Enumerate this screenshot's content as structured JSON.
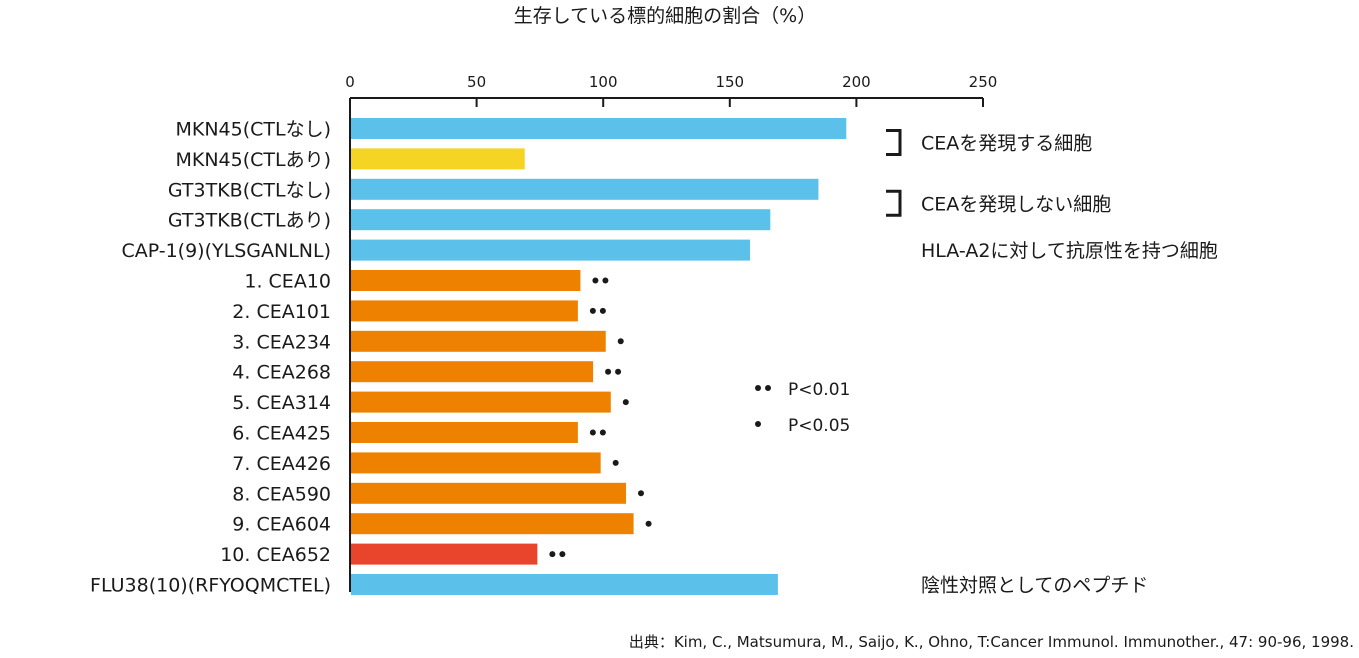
{
  "chart_data": {
    "type": "bar",
    "orientation": "horizontal",
    "title": "生存している標的細胞の割合（%）",
    "xlim": [
      0,
      250
    ],
    "x_ticks": [
      0,
      50,
      100,
      150,
      200,
      250
    ],
    "categories": [
      "MKN45(CTLなし)",
      "MKN45(CTLあり)",
      "GT3TKB(CTLなし)",
      "GT3TKB(CTLあり)",
      "CAP-1(9)(YLSGANLNL)",
      "1. CEA10",
      "2. CEA101",
      "3. CEA234",
      "4. CEA268",
      "5. CEA314",
      "6. CEA425",
      "7. CEA426",
      "8. CEA590",
      "9. CEA604",
      "10. CEA652",
      "FLU38(10)(RFYOQMCTEL)"
    ],
    "values": [
      196,
      69,
      185,
      166,
      158,
      91,
      90,
      101,
      96,
      103,
      90,
      99,
      109,
      112,
      74,
      169
    ],
    "bar_colors": [
      "#5bc0ea",
      "#f5d423",
      "#5bc0ea",
      "#5bc0ea",
      "#5bc0ea",
      "#ee8200",
      "#ee8200",
      "#ee8200",
      "#ee8200",
      "#ee8200",
      "#ee8200",
      "#ee8200",
      "#ee8200",
      "#ee8200",
      "#e8452c",
      "#5bc0ea"
    ],
    "significance": [
      "",
      "",
      "",
      "",
      "",
      "••",
      "••",
      "•",
      "••",
      "•",
      "••",
      "•",
      "•",
      "•",
      "••",
      ""
    ],
    "group_labels": [
      {
        "text": "CEAを発現する細胞",
        "rows": [
          0,
          1
        ],
        "bracket": true
      },
      {
        "text": "CEAを発現しない細胞",
        "rows": [
          2,
          3
        ],
        "bracket": true
      },
      {
        "text": "HLA-A2に対して抗原性を持つ細胞",
        "rows": [
          4
        ],
        "bracket": false
      },
      {
        "text": "陰性対照としてのペプチド",
        "rows": [
          15
        ],
        "bracket": false
      }
    ],
    "legend": [
      {
        "marker": "••",
        "label": "P<0.01"
      },
      {
        "marker": "•",
        "label": "P<0.05"
      }
    ],
    "legend_placement": "right-middle",
    "grid": false,
    "source": "出典：Kim, C., Matsumura, M., Saijo, K., Ohno, T:Cancer Immunol. Immunother., 47: 90-96, 1998."
  },
  "colors": {
    "axis": "#1a1a1a",
    "text": "#1a1a1a",
    "blue": "#5bc0ea",
    "yellow": "#f5d423",
    "orange": "#ee8200",
    "red": "#e8452c"
  }
}
